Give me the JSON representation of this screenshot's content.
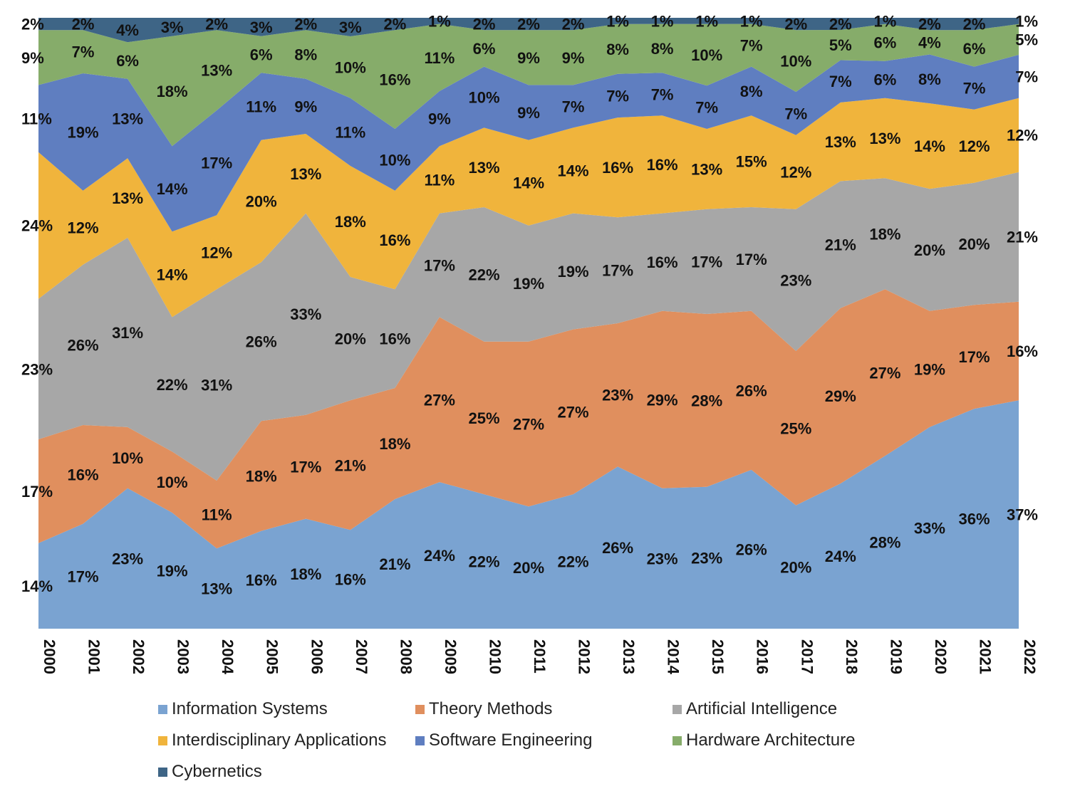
{
  "chart_data": {
    "type": "area",
    "stacked": "percent",
    "x": [
      "2000",
      "2001",
      "2002",
      "2003",
      "2004",
      "2005",
      "2006",
      "2007",
      "2008",
      "2009",
      "2010",
      "2011",
      "2012",
      "2013",
      "2014",
      "2015",
      "2016",
      "2017",
      "2018",
      "2019",
      "2020",
      "2021",
      "2022"
    ],
    "ylim": [
      0,
      100
    ],
    "grid": false,
    "legend": "bottom",
    "series": [
      {
        "name": "Information Systems",
        "color": "#7aa3d1",
        "values": [
          14,
          17,
          23,
          19,
          13,
          16,
          18,
          16,
          21,
          24,
          22,
          20,
          22,
          26,
          23,
          23,
          26,
          20,
          24,
          28,
          33,
          36,
          37
        ]
      },
      {
        "name": "Theory Methods",
        "color": "#e08f5e",
        "values": [
          17,
          16,
          10,
          10,
          11,
          18,
          17,
          21,
          18,
          27,
          25,
          27,
          27,
          23,
          29,
          28,
          26,
          25,
          29,
          27,
          19,
          17,
          16
        ]
      },
      {
        "name": "Artificial Intelligence",
        "color": "#a7a7a7",
        "values": [
          23,
          26,
          31,
          22,
          31,
          26,
          33,
          20,
          16,
          17,
          22,
          19,
          19,
          17,
          16,
          17,
          17,
          23,
          21,
          18,
          20,
          20,
          21
        ]
      },
      {
        "name": "Interdisciplinary Applications",
        "color": "#f0b43c",
        "values": [
          24,
          12,
          13,
          14,
          12,
          20,
          13,
          18,
          16,
          11,
          13,
          14,
          14,
          16,
          16,
          13,
          15,
          12,
          13,
          13,
          14,
          12,
          12
        ]
      },
      {
        "name": "Software Engineering",
        "color": "#5f7ec0",
        "values": [
          11,
          19,
          13,
          14,
          17,
          11,
          9,
          11,
          10,
          9,
          10,
          9,
          7,
          7,
          7,
          7,
          8,
          7,
          7,
          6,
          8,
          7,
          7
        ]
      },
      {
        "name": "Hardware Architecture",
        "color": "#86ac6a",
        "values": [
          9,
          7,
          6,
          18,
          13,
          6,
          8,
          10,
          16,
          11,
          6,
          9,
          9,
          8,
          8,
          10,
          7,
          10,
          5,
          6,
          4,
          6,
          5
        ]
      },
      {
        "name": "Cybernetics",
        "color": "#3e6586",
        "values": [
          2,
          2,
          4,
          3,
          2,
          3,
          2,
          3,
          2,
          1,
          2,
          2,
          2,
          1,
          1,
          1,
          1,
          2,
          2,
          1,
          2,
          2,
          1
        ]
      }
    ],
    "label_suffix": "%"
  }
}
